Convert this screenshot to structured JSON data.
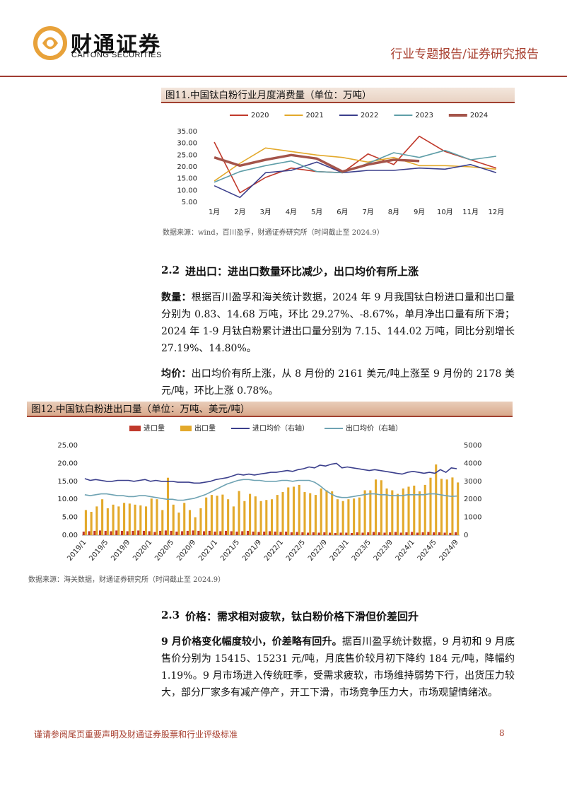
{
  "header": {
    "logo_cn": "财通证券",
    "logo_en": "CAITONG SECURITIES",
    "report_type": "行业专题报告/证券研究报告"
  },
  "figure_11": {
    "caption": "图11.中国钛白粉行业月度消费量（单位：万吨）",
    "source": "数据来源：wind，百川盈孚，财通证券研究所（时间截止至 2024.9）",
    "chart": {
      "type": "line",
      "categories": [
        "1月",
        "2月",
        "3月",
        "4月",
        "5月",
        "6月",
        "7月",
        "8月",
        "9月",
        "10月",
        "11月",
        "12月"
      ],
      "ylim": [
        5,
        35
      ],
      "yticks": [
        {
          "value": 5,
          "label": "5.00"
        },
        {
          "value": 10,
          "label": "10.00"
        },
        {
          "value": 15,
          "label": "15.00"
        },
        {
          "value": 20,
          "label": "20.00"
        },
        {
          "value": 25,
          "label": "25.00"
        },
        {
          "value": 30,
          "label": "30.00"
        },
        {
          "value": 35,
          "label": "35.00"
        }
      ],
      "grid": false,
      "legend": "top",
      "series": [
        {
          "name": "2020",
          "color": "#c0392b",
          "values": [
            30.5,
            9,
            15.5,
            19.5,
            18,
            17.5,
            25.5,
            21,
            33,
            26.5,
            23,
            19.5
          ]
        },
        {
          "name": "2021",
          "color": "#e3a92b",
          "values": [
            14,
            21.5,
            28,
            26.5,
            25,
            24,
            22,
            24,
            20.5,
            20.5,
            20,
            19
          ]
        },
        {
          "name": "2022",
          "color": "#3b3f8c",
          "values": [
            12,
            7,
            17.5,
            18.5,
            22,
            17.5,
            18.5,
            18.5,
            19.5,
            19,
            21,
            17.5
          ]
        },
        {
          "name": "2023",
          "color": "#5f9ea8",
          "values": [
            13.5,
            18,
            20.5,
            22.5,
            18,
            17.5,
            21.5,
            26,
            24,
            27,
            23,
            24.5
          ]
        },
        {
          "name": "2024",
          "color": "#a4544a",
          "values": [
            24,
            20.5,
            23,
            25,
            23.5,
            18,
            21,
            23,
            22.5,
            null,
            null,
            null
          ]
        }
      ]
    }
  },
  "section_2_2": {
    "number": "2.2",
    "title": "进出口：进出口数量环比减少，出口均价有所上涨",
    "paragraphs": [
      {
        "lead": "数量：",
        "text": "根据百川盈孚和海关统计数据，2024 年 9 月我国钛白粉进口量和出口量分别为 0.83、14.68 万吨，环比 29.27%、-8.67%，单月净出口量有所下滑；2024 年 1-9 月钛白粉累计进出口量分别为 7.15、144.02 万吨，同比分别增长 27.19%、14.80%。"
      },
      {
        "lead": "均价：",
        "text": "出口均价有所上涨，从 8 月份的 2161 美元/吨上涨至 9 月份的 2178 美元/吨，环比上涨 0.78%。"
      }
    ]
  },
  "figure_12": {
    "caption": "图12.中国钛白粉进出口量（单位：万吨、美元/吨）",
    "source": "数据来源：海关数据，财通证券研究所（时间截止至 2024.9）",
    "chart": {
      "type": "combo",
      "categories": [
        "2019/1",
        null,
        null,
        null,
        "2019/5",
        null,
        null,
        null,
        "2019/9",
        null,
        null,
        null,
        "2020/1",
        null,
        null,
        null,
        "2020/5",
        null,
        null,
        null,
        "2020/9",
        null,
        null,
        null,
        "2021/1",
        null,
        null,
        null,
        "2021/5",
        null,
        null,
        null,
        "2021/9",
        null,
        null,
        null,
        "2022/1",
        null,
        null,
        null,
        "2022/5",
        null,
        null,
        null,
        "2022/9",
        null,
        null,
        null,
        "2023/1",
        null,
        null,
        null,
        "2023/5",
        null,
        null,
        null,
        "2023/9",
        null,
        null,
        null,
        "2024/1",
        null,
        null,
        null,
        "2024/5",
        null,
        null,
        null,
        "2024/9"
      ],
      "ylim": [
        0,
        25
      ],
      "yticks": [
        {
          "value": 0,
          "label": "0.00"
        },
        {
          "value": 5,
          "label": "5.00"
        },
        {
          "value": 10,
          "label": "10.00"
        },
        {
          "value": 15,
          "label": "15.00"
        },
        {
          "value": 20,
          "label": "20.00"
        },
        {
          "value": 25,
          "label": "25.00"
        }
      ],
      "y2lim": [
        0,
        5000
      ],
      "y2ticks": [
        0,
        1000,
        2000,
        3000,
        4000,
        5000
      ],
      "grid": false,
      "legend": "top",
      "series": [
        {
          "name": "进口量",
          "type": "bar",
          "color": "#c0392b",
          "values": [
            1.0,
            1.1,
            1.2,
            1.3,
            1.2,
            1.1,
            1.3,
            1.2,
            1.1,
            1.2,
            1.3,
            1.2,
            1.1,
            0.9,
            1.2,
            1.3,
            1.2,
            1.0,
            1.1,
            1.2,
            1.3,
            1.2,
            1.1,
            1.2,
            1.0,
            1.1,
            1.2,
            1.1,
            1.0,
            1.1,
            1.2,
            1.0,
            0.9,
            1.0,
            1.1,
            1.0,
            0.9,
            1.0,
            0.8,
            0.9,
            0.8,
            0.7,
            0.8,
            0.7,
            0.8,
            0.7,
            0.6,
            0.7,
            0.7,
            0.6,
            0.8,
            0.7,
            0.8,
            0.9,
            0.8,
            0.7,
            0.8,
            0.9,
            0.7,
            0.8,
            0.9,
            0.7,
            0.8,
            0.9,
            0.8,
            0.8,
            0.7,
            0.64,
            0.83
          ]
        },
        {
          "name": "出口量",
          "type": "bar",
          "color": "#e3a92b",
          "values": [
            7.0,
            6.5,
            8.0,
            10.0,
            7.5,
            8.5,
            8.0,
            9.0,
            8.8,
            8.5,
            8.3,
            8.0,
            10.2,
            10.0,
            7.0,
            16.0,
            8.5,
            6.3,
            9.0,
            7.0,
            5.0,
            7.5,
            10.5,
            11.2,
            11.0,
            11.3,
            10.0,
            8.0,
            12.3,
            9.5,
            11.5,
            10.8,
            9.5,
            9.8,
            10.0,
            11.2,
            12.0,
            13.3,
            13.5,
            14.0,
            12.0,
            11.7,
            11.2,
            13.0,
            12.5,
            12.2,
            10.0,
            9.5,
            10.0,
            10.2,
            10.5,
            12.5,
            12.5,
            15.5,
            15.3,
            13.0,
            12.5,
            11.5,
            13.0,
            13.5,
            13.8,
            12.2,
            14.0,
            16.0,
            19.7,
            15.7,
            15.5,
            16.07,
            14.68
          ]
        },
        {
          "name": "进口均价（右轴）",
          "type": "line",
          "axis": "y2",
          "color": "#3b3f8c",
          "values": [
            3150,
            3050,
            3100,
            3050,
            3000,
            3000,
            3050,
            3050,
            3050,
            3000,
            3050,
            3100,
            3000,
            3050,
            3000,
            3000,
            3000,
            2950,
            2950,
            2950,
            2900,
            2900,
            2950,
            3000,
            3100,
            3150,
            3200,
            3300,
            3400,
            3350,
            3400,
            3350,
            3400,
            3450,
            3500,
            3500,
            3550,
            3600,
            3550,
            3650,
            3700,
            3800,
            3750,
            3900,
            3850,
            3950,
            4000,
            3750,
            3800,
            3750,
            3700,
            3650,
            3600,
            3650,
            3600,
            3550,
            3500,
            3450,
            3400,
            3500,
            3550,
            3500,
            3450,
            3500,
            3450,
            3650,
            3500,
            3750,
            3700
          ]
        },
        {
          "name": "出口均价（右轴）",
          "type": "line",
          "axis": "y2",
          "color": "#6fa3b3",
          "values": [
            2250,
            2200,
            2250,
            2300,
            2300,
            2250,
            2200,
            2200,
            2150,
            2150,
            2200,
            2200,
            2150,
            2100,
            2050,
            2000,
            2000,
            1950,
            1950,
            2000,
            2050,
            2150,
            2250,
            2400,
            2550,
            2700,
            2850,
            2950,
            3050,
            3100,
            3100,
            3050,
            3050,
            3000,
            3000,
            3000,
            3050,
            3050,
            3000,
            3050,
            3050,
            3050,
            2950,
            2750,
            2500,
            2300,
            2150,
            2100,
            2100,
            2150,
            2200,
            2250,
            2300,
            2300,
            2250,
            2250,
            2200,
            2200,
            2200,
            2250,
            2250,
            2250,
            2250,
            2300,
            2300,
            2250,
            2200,
            2161,
            2178
          ]
        }
      ]
    }
  },
  "section_2_3": {
    "number": "2.3",
    "title": "价格：需求相对疲软，钛白粉价格下滑但价差回升",
    "paragraphs": [
      {
        "lead": "9 月价格变化幅度较小，价差略有回升。",
        "text": "据百川盈孚统计数据，9 月初和 9 月底售价分别为 15415、15231 元/吨，月底售价较月初下降约 184 元/吨，降幅约 1.19%。9 月市场进入传统旺季，受需求疲软，市场维持弱势下行，出货压力较大，部分厂家多有减产停产，开工下滑，市场竞争压力大，市场观望情绪浓。"
      }
    ]
  },
  "footer": {
    "disclaimer": "谨请参阅尾页重要声明及财通证券股票和行业评级标准",
    "page": "8"
  }
}
